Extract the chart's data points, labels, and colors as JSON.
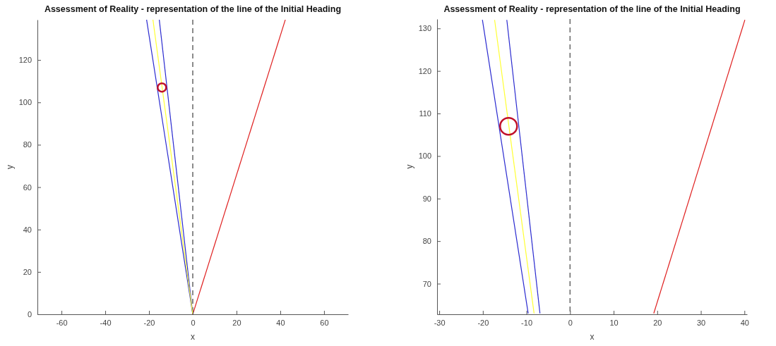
{
  "chart_data": [
    {
      "type": "line",
      "title": "Assessment of Reality - representation of the line of the Initial Heading",
      "xlabel": "x",
      "ylabel": "y",
      "xlim": [
        -71,
        71
      ],
      "xticks": [
        -60,
        -40,
        -20,
        0,
        20,
        40,
        60
      ],
      "ylim": [
        0,
        139
      ],
      "yticks": [
        0,
        20,
        40,
        60,
        80,
        100,
        120
      ],
      "grid": false,
      "series": [
        {
          "color": "#2b2bd0",
          "x": [
            0,
            -21.1
          ],
          "values": [
            0,
            139
          ]
        },
        {
          "color": "#2b2bd0",
          "x": [
            0,
            -15.3
          ],
          "values": [
            0,
            139
          ]
        },
        {
          "color": "#ffff33",
          "x": [
            0,
            -18.2
          ],
          "values": [
            0,
            139
          ]
        },
        {
          "color": "#e02020",
          "x": [
            0,
            42.3
          ],
          "values": [
            0,
            139
          ]
        },
        {
          "type": "scatter",
          "marker": "circle",
          "color": "#c0102a",
          "x": [
            -14.1
          ],
          "values": [
            107
          ]
        }
      ],
      "ref_lines": [
        {
          "axis": "x",
          "value": 0,
          "color": "#666666",
          "line_style": "dashed"
        }
      ]
    },
    {
      "type": "line",
      "title": "Assessment of Reality - representation of the line of the Initial Heading",
      "xlabel": "x",
      "ylabel": "y",
      "xlim": [
        -30.5,
        40.6
      ],
      "xticks": [
        -30,
        -20,
        -10,
        0,
        10,
        20,
        30,
        40
      ],
      "ylim": [
        62.8,
        132.2
      ],
      "yticks": [
        70,
        80,
        90,
        100,
        110,
        120,
        130
      ],
      "grid": false,
      "series": [
        {
          "color": "#2b2bd0",
          "x": [
            -9.6,
            -20.1
          ],
          "values": [
            63,
            132
          ]
        },
        {
          "color": "#2b2bd0",
          "x": [
            -6.9,
            -14.5
          ],
          "values": [
            63,
            132
          ]
        },
        {
          "color": "#ffff33",
          "x": [
            -8.25,
            -17.3
          ],
          "values": [
            63,
            132
          ]
        },
        {
          "color": "#e02020",
          "x": [
            19.2,
            40.1
          ],
          "values": [
            63,
            132
          ]
        },
        {
          "type": "scatter",
          "marker": "circle",
          "color": "#c0102a",
          "x": [
            -14.1
          ],
          "values": [
            107
          ]
        }
      ],
      "ref_lines": [
        {
          "axis": "x",
          "value": 0,
          "color": "#666666",
          "line_style": "dashed"
        }
      ]
    }
  ]
}
